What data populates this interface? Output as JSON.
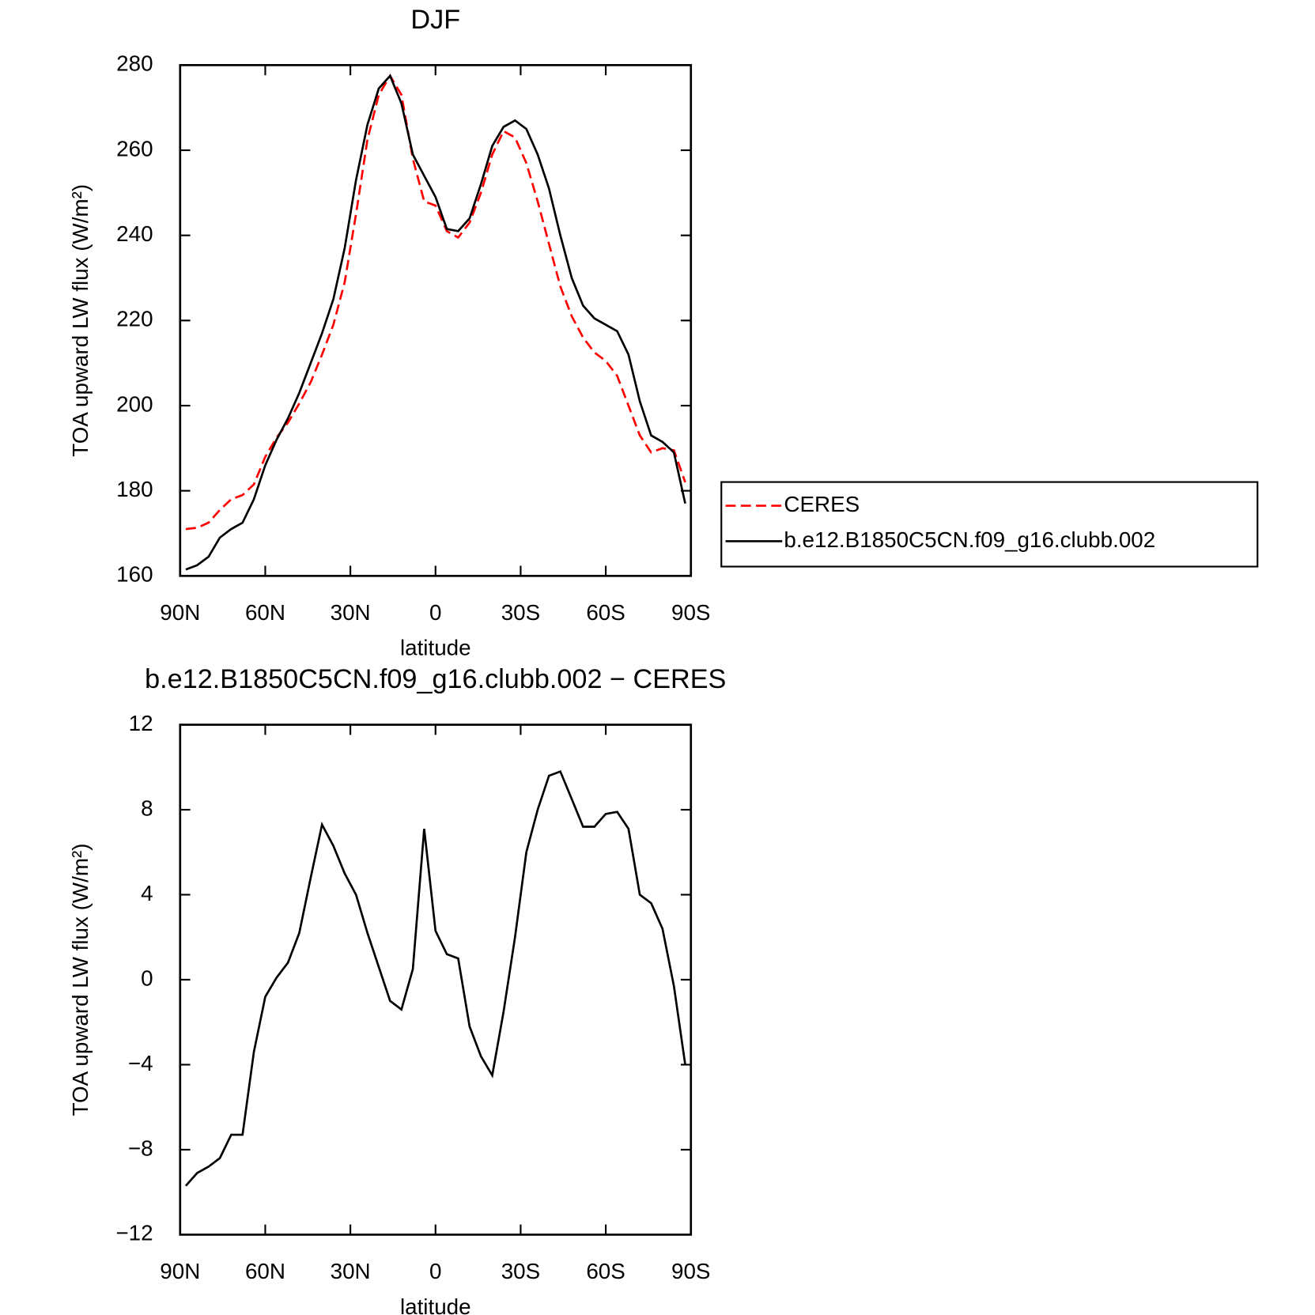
{
  "chart_data": [
    {
      "type": "line",
      "title": "DJF",
      "xlabel": "latitude",
      "ylabel": "TOA upward LW flux (W/m²)",
      "x": [
        88,
        84,
        80,
        76,
        72,
        68,
        64,
        60,
        56,
        52,
        48,
        44,
        40,
        36,
        32,
        28,
        24,
        20,
        16,
        12,
        8,
        4,
        0,
        -4,
        -8,
        -12,
        -16,
        -20,
        -24,
        -28,
        -32,
        -36,
        -40,
        -44,
        -48,
        -52,
        -56,
        -60,
        -64,
        -68,
        -72,
        -76,
        -80,
        -84,
        -88
      ],
      "xlim": [
        90,
        -90
      ],
      "xticks": [
        {
          "value": 90,
          "label": "90N"
        },
        {
          "value": 60,
          "label": "60N"
        },
        {
          "value": 30,
          "label": "30N"
        },
        0,
        {
          "value": -30,
          "label": "30S"
        },
        {
          "value": -60,
          "label": "60S"
        },
        {
          "value": -90,
          "label": "90S"
        }
      ],
      "ylim": [
        160,
        280
      ],
      "yticks": [
        160,
        180,
        200,
        220,
        240,
        260,
        280
      ],
      "legend": "right",
      "series": [
        {
          "name": "CERES",
          "color": "#ff0000",
          "dash": true,
          "values": [
            171,
            171.3,
            172.5,
            175.5,
            178,
            179,
            181.5,
            188,
            192.5,
            196,
            200.5,
            205.5,
            212,
            219,
            229,
            245,
            262.5,
            273,
            277.5,
            273,
            258,
            248,
            247,
            241,
            239.5,
            243,
            250,
            259,
            264.5,
            263,
            257,
            248,
            238,
            228,
            221,
            216,
            212.5,
            210.5,
            207,
            200,
            193,
            189,
            190,
            189.5,
            182
          ]
        },
        {
          "name": "b.e12.B1850C5CN.f09_g16.clubb.002",
          "color": "#000000",
          "dash": false,
          "values": [
            161.5,
            162.5,
            164.5,
            169,
            171,
            172.5,
            178,
            186,
            192,
            197,
            203,
            210,
            217,
            225,
            237,
            253,
            266,
            274.5,
            277.5,
            271,
            259,
            254,
            249,
            241.5,
            241,
            244,
            252,
            261,
            265.5,
            267,
            265,
            259,
            251,
            240,
            230,
            223.5,
            220.5,
            219,
            217.5,
            212,
            201,
            193,
            191.5,
            189,
            177
          ]
        }
      ]
    },
    {
      "type": "line",
      "title": "b.e12.B1850C5CN.f09_g16.clubb.002 − CERES",
      "xlabel": "latitude",
      "ylabel": "TOA upward LW flux (W/m²)",
      "x": [
        88,
        84,
        80,
        76,
        72,
        68,
        64,
        60,
        56,
        52,
        48,
        44,
        40,
        36,
        32,
        28,
        24,
        20,
        16,
        12,
        8,
        4,
        0,
        -4,
        -8,
        -12,
        -16,
        -20,
        -24,
        -28,
        -32,
        -36,
        -40,
        -44,
        -48,
        -52,
        -56,
        -60,
        -64,
        -68,
        -72,
        -76,
        -80,
        -84,
        -88
      ],
      "xlim": [
        90,
        -90
      ],
      "xticks": [
        {
          "value": 90,
          "label": "90N"
        },
        {
          "value": 60,
          "label": "60N"
        },
        {
          "value": 30,
          "label": "30N"
        },
        0,
        {
          "value": -30,
          "label": "30S"
        },
        {
          "value": -60,
          "label": "60S"
        },
        {
          "value": -90,
          "label": "90S"
        }
      ],
      "ylim": [
        -12,
        12
      ],
      "yticks": [
        {
          "value": -12,
          "label": "−12"
        },
        {
          "value": -8,
          "label": "−8"
        },
        {
          "value": -4,
          "label": "−4"
        },
        0,
        4,
        8,
        12
      ],
      "series": [
        {
          "color": "#000000",
          "dash": false,
          "values": [
            -9.7,
            -9.1,
            -8.8,
            -8.4,
            -7.3,
            -7.3,
            -3.4,
            -0.8,
            0.1,
            0.8,
            2.2,
            4.8,
            7.3,
            6.3,
            5.0,
            4.0,
            2.2,
            0.6,
            -1.0,
            -1.4,
            0.5,
            7.1,
            2.3,
            1.2,
            1.0,
            -2.2,
            -3.6,
            -4.5,
            -1.5,
            2.0,
            6.0,
            8.0,
            9.6,
            9.8,
            8.5,
            7.2,
            7.2,
            7.8,
            7.9,
            7.1,
            4.0,
            3.6,
            2.4,
            -0.3,
            -4.0
          ]
        }
      ]
    }
  ]
}
